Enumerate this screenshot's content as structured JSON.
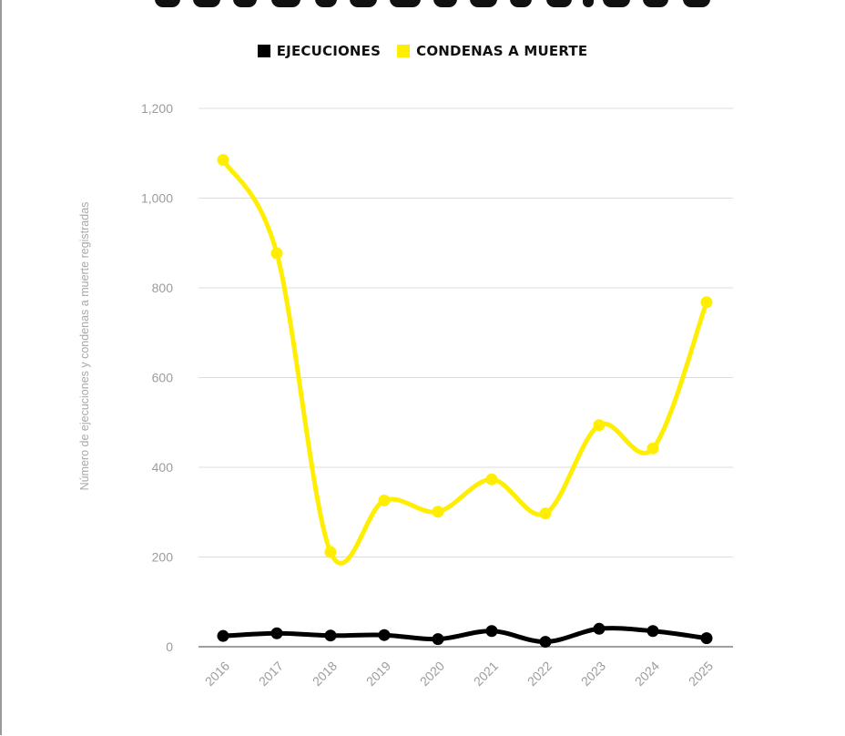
{
  "legend": {
    "items": [
      {
        "label": "EJECUCIONES",
        "color": "#000000"
      },
      {
        "label": "CONDENAS A MUERTE",
        "color": "#FFEE00"
      }
    ]
  },
  "chart_data": {
    "type": "line",
    "title": "",
    "xlabel": "",
    "ylabel": "Número de ejecuciones y condenas a muerte registradas",
    "x": [
      "2016",
      "2017",
      "2018",
      "2019",
      "2020",
      "2021",
      "2022",
      "2023",
      "2024",
      "2025"
    ],
    "ylim": [
      0,
      1200
    ],
    "yticks": [
      0,
      200,
      400,
      600,
      800,
      1000,
      1200
    ],
    "ytick_labels": [
      "0",
      "200",
      "400",
      "600",
      "800",
      "1,000",
      "1,200"
    ],
    "grid": true,
    "legend_position": "top-center",
    "series": [
      {
        "name": "EJECUCIONES",
        "color": "#000000",
        "values": [
          24,
          30,
          25,
          26,
          17,
          35,
          11,
          40,
          35,
          19
        ]
      },
      {
        "name": "CONDENAS A MUERTE",
        "color": "#FFEE00",
        "values": [
          1085,
          877,
          211,
          326,
          301,
          373,
          297,
          494,
          442,
          768
        ]
      }
    ]
  }
}
